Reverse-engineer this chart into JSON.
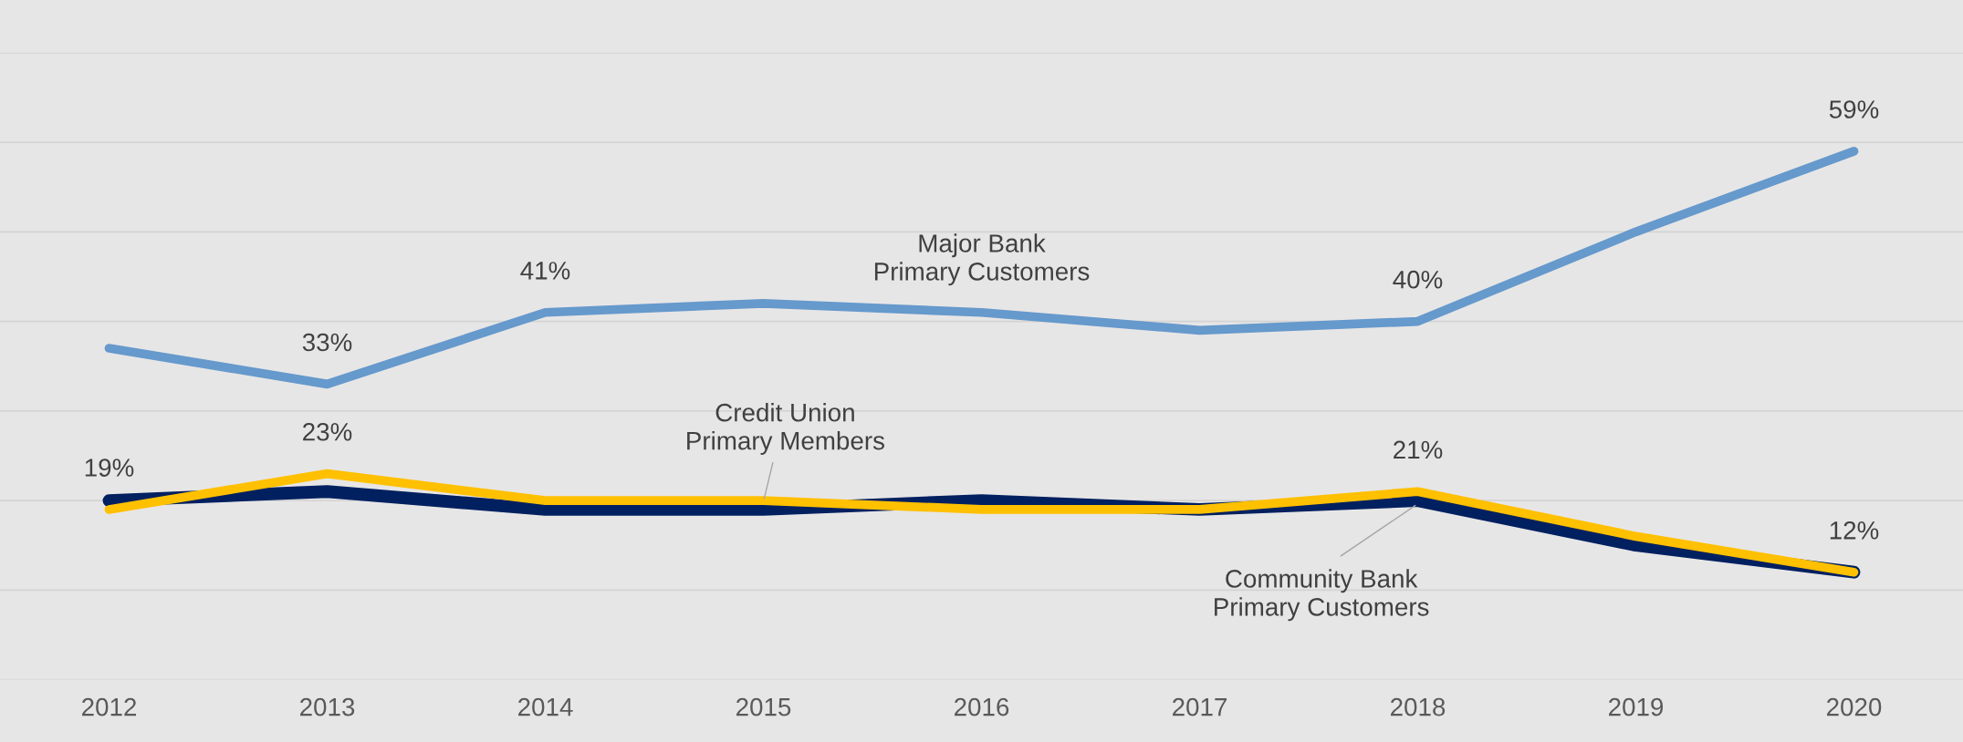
{
  "chart_data": {
    "type": "line",
    "categories": [
      "2012",
      "2013",
      "2014",
      "2015",
      "2016",
      "2017",
      "2018",
      "2019",
      "2020"
    ],
    "series": [
      {
        "name": "Major Bank Primary Customers",
        "color": "#6699cc",
        "values": [
          37,
          33,
          41,
          42,
          41,
          39,
          40,
          50,
          59
        ],
        "value_labels": [
          null,
          "33%",
          "41%",
          null,
          null,
          null,
          "40%",
          null,
          "59%"
        ]
      },
      {
        "name": "Community Bank Primary Customers",
        "color": "#002060",
        "values": [
          20,
          21,
          19,
          19,
          20,
          19,
          20,
          15,
          12
        ],
        "value_labels": [
          null,
          null,
          null,
          null,
          null,
          null,
          null,
          null,
          null
        ]
      },
      {
        "name": "Credit Union Primary Members",
        "color": "#ffc000",
        "values": [
          19,
          23,
          20,
          20,
          19,
          19,
          21,
          16,
          12
        ],
        "value_labels": [
          "19%",
          "23%",
          null,
          null,
          null,
          null,
          "21%",
          null,
          "12%"
        ]
      }
    ],
    "ylim": [
      0,
      70
    ],
    "yticks": [
      {
        "value": 0,
        "label": null
      },
      {
        "value": 10,
        "label": null
      },
      {
        "value": 20,
        "label": null
      },
      {
        "value": 30,
        "label": null
      },
      {
        "value": 40,
        "label": null
      },
      {
        "value": 50,
        "label": null
      },
      {
        "value": 60,
        "label": null
      },
      {
        "value": 70,
        "label": null
      }
    ],
    "grid": "y",
    "legend": false,
    "tick_labels": "x",
    "marker": "none",
    "line_style": "solid"
  }
}
